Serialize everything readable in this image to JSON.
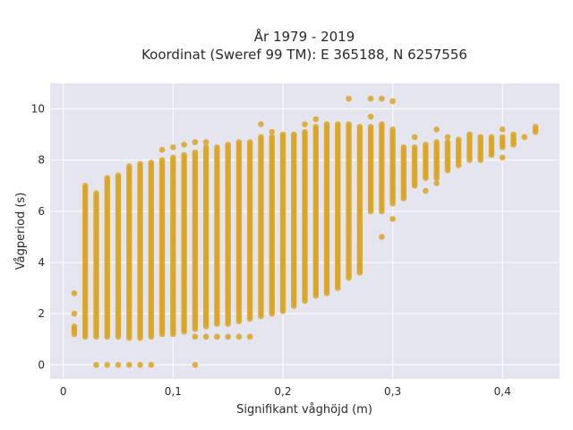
{
  "chart_data": {
    "type": "scatter",
    "title_line1": "År 1979 - 2019",
    "title_line2": "Koordinat (Sweref 99 TM): E 365188, N 6257556",
    "xlabel": "Signifikant våghöjd (m)",
    "ylabel": "Vågperiod (s)",
    "xlim": [
      -0.012,
      0.452
    ],
    "ylim": [
      -0.55,
      11.0
    ],
    "x_ticks": [
      0,
      0.1,
      0.2,
      0.3,
      0.4
    ],
    "x_tick_labels": [
      "0",
      "0,1",
      "0,2",
      "0,3",
      "0,4"
    ],
    "y_ticks": [
      0,
      2,
      4,
      6,
      8,
      10
    ],
    "y_tick_labels": [
      "0",
      "2",
      "4",
      "6",
      "8",
      "10"
    ],
    "grid": true,
    "colors": {
      "marker": "#d9a522",
      "plot_bg": "#e5e5ef",
      "grid": "#ffffff"
    },
    "columns": [
      {
        "x": 0.01,
        "y": [
          1.2,
          1.5
        ],
        "extra": [
          2.0,
          2.8
        ]
      },
      {
        "x": 0.02,
        "y": [
          1.1,
          7.0
        ]
      },
      {
        "x": 0.03,
        "y": [
          1.1,
          6.7
        ],
        "extra": [
          0.0
        ]
      },
      {
        "x": 0.04,
        "y": [
          1.1,
          7.3
        ],
        "extra": [
          0.0
        ]
      },
      {
        "x": 0.05,
        "y": [
          1.1,
          7.4
        ],
        "extra": [
          0.0
        ]
      },
      {
        "x": 0.06,
        "y": [
          1.05,
          7.8
        ],
        "extra": [
          0.0
        ]
      },
      {
        "x": 0.07,
        "y": [
          1.05,
          7.9
        ],
        "extra": [
          0.0
        ]
      },
      {
        "x": 0.08,
        "y": [
          1.1,
          7.9
        ],
        "extra": [
          0.0
        ]
      },
      {
        "x": 0.09,
        "y": [
          1.2,
          8.0
        ],
        "extra": [
          8.4
        ]
      },
      {
        "x": 0.1,
        "y": [
          1.2,
          8.1
        ],
        "extra": [
          8.5
        ]
      },
      {
        "x": 0.11,
        "y": [
          1.3,
          8.2
        ],
        "extra": [
          8.6
        ]
      },
      {
        "x": 0.12,
        "y": [
          1.4,
          8.3
        ],
        "extra": [
          1.1,
          8.7,
          0.0
        ]
      },
      {
        "x": 0.13,
        "y": [
          1.5,
          8.5
        ],
        "extra": [
          1.1,
          8.7
        ]
      },
      {
        "x": 0.14,
        "y": [
          1.6,
          8.5
        ],
        "extra": [
          1.1
        ]
      },
      {
        "x": 0.15,
        "y": [
          1.6,
          8.6
        ],
        "extra": [
          1.1
        ]
      },
      {
        "x": 0.16,
        "y": [
          1.7,
          8.7
        ],
        "extra": [
          1.1
        ]
      },
      {
        "x": 0.17,
        "y": [
          1.8,
          8.7
        ],
        "extra": [
          1.1
        ]
      },
      {
        "x": 0.18,
        "y": [
          1.9,
          8.9
        ],
        "extra": [
          9.4
        ]
      },
      {
        "x": 0.19,
        "y": [
          2.0,
          8.9
        ],
        "extra": [
          9.1
        ]
      },
      {
        "x": 0.2,
        "y": [
          2.1,
          9.0
        ]
      },
      {
        "x": 0.21,
        "y": [
          2.3,
          9.0
        ]
      },
      {
        "x": 0.22,
        "y": [
          2.5,
          9.1
        ],
        "extra": [
          9.4
        ]
      },
      {
        "x": 0.23,
        "y": [
          2.7,
          9.3
        ],
        "extra": [
          9.6
        ]
      },
      {
        "x": 0.24,
        "y": [
          2.8,
          9.4
        ]
      },
      {
        "x": 0.25,
        "y": [
          3.0,
          9.4
        ]
      },
      {
        "x": 0.26,
        "y": [
          3.4,
          9.4
        ],
        "extra": [
          10.4
        ]
      },
      {
        "x": 0.27,
        "y": [
          3.6,
          9.3
        ],
        "extra": [
          3.9
        ]
      },
      {
        "x": 0.28,
        "y": [
          6.0,
          9.3
        ],
        "extra": [
          10.4,
          9.7
        ]
      },
      {
        "x": 0.29,
        "y": [
          6.0,
          9.4
        ],
        "extra": [
          10.4,
          5.0
        ]
      },
      {
        "x": 0.3,
        "y": [
          6.3,
          9.2
        ],
        "extra": [
          10.3,
          5.7
        ]
      },
      {
        "x": 0.31,
        "y": [
          6.5,
          8.5
        ]
      },
      {
        "x": 0.32,
        "y": [
          7.0,
          8.5
        ],
        "extra": [
          8.9
        ]
      },
      {
        "x": 0.33,
        "y": [
          7.3,
          8.6
        ],
        "extra": [
          6.8
        ]
      },
      {
        "x": 0.34,
        "y": [
          7.3,
          8.7
        ],
        "extra": [
          7.1,
          9.2
        ]
      },
      {
        "x": 0.35,
        "y": [
          7.6,
          8.7
        ],
        "extra": [
          8.9
        ]
      },
      {
        "x": 0.36,
        "y": [
          7.8,
          8.8
        ]
      },
      {
        "x": 0.37,
        "y": [
          8.0,
          8.9
        ],
        "extra": [
          9.0
        ]
      },
      {
        "x": 0.38,
        "y": [
          8.0,
          8.9
        ]
      },
      {
        "x": 0.39,
        "y": [
          8.2,
          8.9
        ]
      },
      {
        "x": 0.4,
        "y": [
          8.5,
          8.9
        ],
        "extra": [
          8.1,
          9.2
        ]
      },
      {
        "x": 0.41,
        "y": [
          8.6,
          8.9
        ],
        "extra": [
          9.0
        ]
      },
      {
        "x": 0.42,
        "y": [
          8.9,
          8.9
        ]
      },
      {
        "x": 0.43,
        "y": [
          9.1,
          9.3
        ]
      }
    ]
  }
}
